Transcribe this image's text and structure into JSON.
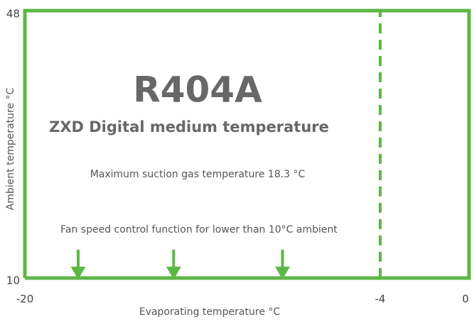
{
  "chart_data": {
    "type": "line",
    "title": "R404A",
    "subtitle": "ZXD Digital medium temperature",
    "annotations": [
      "Maximum suction gas temperature 18.3 °C",
      "Fan speed control function for lower than 10°C ambient"
    ],
    "x_label": "Evaporating temperature °C",
    "y_label": "Ambient temperature °C",
    "series": [
      {
        "x": [
          -20,
          0,
          0,
          -20,
          -20
        ],
        "values": [
          10,
          10,
          48,
          48,
          10
        ],
        "color": "#5db746",
        "dashed": false
      },
      {
        "x": [
          -4,
          -4
        ],
        "values": [
          10,
          48
        ],
        "color": "#5db746",
        "dashed": true
      }
    ],
    "arrows_x": [
      -17.6,
      -13.3,
      -8.4
    ],
    "arrow_color": "#5db746",
    "xlim": [
      -20,
      0
    ],
    "ylim": [
      10,
      48
    ],
    "xticks": [
      -20,
      -4,
      0
    ],
    "yticks": [
      10,
      48
    ]
  }
}
